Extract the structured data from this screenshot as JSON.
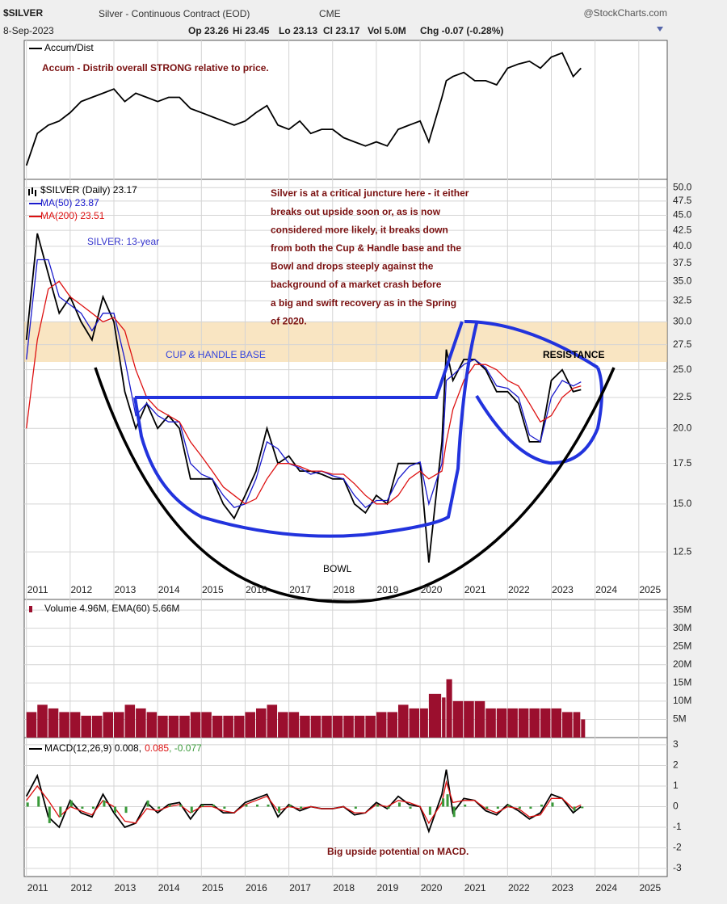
{
  "chart_data": [
    {
      "type": "line",
      "title": "$SILVER",
      "subtitle": "Silver - Continuous Contract (EOD)",
      "exchange": "CME",
      "source": "@StockCharts.com",
      "date": "8-Sep-2023",
      "quote": [
        "Op 23.26",
        "Hi 23.45",
        "Lo 23.13",
        "Cl 23.17",
        "Vol 5.0M",
        "Chg -0.07 (-0.28%)"
      ],
      "x": [
        2011.0,
        2011.25,
        2011.5,
        2011.75,
        2012.0,
        2012.25,
        2012.5,
        2012.75,
        2013.0,
        2013.25,
        2013.5,
        2013.75,
        2014.0,
        2014.25,
        2014.5,
        2014.75,
        2015.0,
        2015.25,
        2015.5,
        2015.75,
        2016.0,
        2016.25,
        2016.5,
        2016.75,
        2017.0,
        2017.25,
        2017.5,
        2017.75,
        2018.0,
        2018.25,
        2018.5,
        2018.75,
        2019.0,
        2019.25,
        2019.5,
        2019.75,
        2020.0,
        2020.2,
        2020.5,
        2020.6,
        2020.75,
        2021.0,
        2021.25,
        2021.5,
        2021.75,
        2022.0,
        2022.25,
        2022.5,
        2022.75,
        2023.0,
        2023.25,
        2023.5,
        2023.68
      ],
      "series": [
        {
          "name": "$SILVER (Daily) 23.17",
          "color": "#000000",
          "values": [
            28,
            42,
            36,
            31,
            33,
            30,
            28,
            33,
            30,
            23,
            20,
            22,
            20,
            21,
            20,
            16.5,
            16.5,
            16.5,
            15,
            14.2,
            15.5,
            17,
            20,
            17.5,
            18,
            17,
            17,
            16.8,
            16.5,
            16.5,
            15,
            14.5,
            15.5,
            15,
            17.5,
            17.5,
            17.5,
            12,
            19,
            27,
            24,
            26,
            26,
            25,
            23,
            23,
            22,
            19,
            19,
            24,
            25,
            23,
            23.17
          ]
        },
        {
          "name": "MA(50) 23.87",
          "color": "#1a1acc",
          "values": [
            26,
            38,
            38,
            33,
            32,
            31,
            29,
            31,
            31,
            26,
            21,
            22,
            21,
            20.5,
            20.5,
            17.5,
            16.8,
            16.5,
            15.5,
            14.8,
            15,
            16.5,
            19,
            18.5,
            17.5,
            17.2,
            16.8,
            17,
            16.7,
            16.5,
            15.5,
            14.8,
            15.2,
            15.2,
            16.5,
            17.3,
            17.6,
            15,
            17.5,
            24,
            24.5,
            25.5,
            26,
            25.2,
            23.5,
            23.3,
            22.5,
            19.5,
            19,
            22.5,
            24,
            23.5,
            23.87
          ]
        },
        {
          "name": "MA(200) 23.51",
          "color": "#dd1111",
          "values": [
            20,
            28,
            34,
            35,
            33,
            32,
            31,
            30,
            30.5,
            29,
            25,
            22.5,
            21.5,
            21,
            20.5,
            19,
            18,
            17,
            16,
            15.5,
            15,
            15.3,
            16.5,
            17.5,
            17.5,
            17.3,
            17,
            17,
            16.8,
            16.8,
            16.2,
            15.5,
            15,
            15,
            15.5,
            16.5,
            17,
            16.5,
            17,
            19,
            21.5,
            24,
            25.5,
            25.5,
            25,
            24,
            23.5,
            22,
            20.5,
            21,
            22.5,
            23.3,
            23.51
          ]
        }
      ],
      "log_scale": true,
      "grid": true,
      "xlim": [
        2010.95,
        2025.65
      ],
      "xticks": [
        2011,
        2012,
        2013,
        2014,
        2015,
        2016,
        2017,
        2018,
        2019,
        2020,
        2021,
        2022,
        2023,
        2024,
        2025
      ],
      "ylim": [
        10.43,
        51.6
      ],
      "yticks": [
        {
          "value": 50,
          "label": "50.0"
        },
        47.5,
        {
          "value": 45,
          "label": "45.0"
        },
        42.5,
        {
          "value": 40,
          "label": "40.0"
        },
        37.5,
        {
          "value": 35,
          "label": "35.0"
        },
        32.5,
        {
          "value": 30,
          "label": "30.0"
        },
        27.5,
        {
          "value": 25,
          "label": "25.0"
        },
        22.5,
        {
          "value": 20,
          "label": "20.0"
        },
        17.5,
        {
          "value": 15,
          "label": "15.0"
        },
        12.5
      ],
      "annotations": [
        {
          "text": "SILVER: 13-year",
          "color": "#3333cc"
        },
        {
          "lines": [
            "Silver is at a critical juncture here - it either",
            "breaks out upside soon or, as is now",
            "considered more likely, it breaks down",
            "from both the Cup & Handle base and the",
            "Bowl and drops steeply against the",
            "background of a market crash before",
            "a big and swift recovery as in the Spring",
            "of 2020."
          ],
          "color": "#7a1010"
        },
        {
          "text": "RESISTANCE",
          "color": "#000000"
        },
        {
          "text": "CUP & HANDLE BASE",
          "color": "#3344dd"
        },
        {
          "text": "BOWL",
          "color": "#000000"
        }
      ]
    },
    {
      "type": "line",
      "x": [
        2011.0,
        2011.25,
        2011.5,
        2011.75,
        2012.0,
        2012.25,
        2012.5,
        2012.75,
        2013.0,
        2013.25,
        2013.5,
        2013.75,
        2014.0,
        2014.25,
        2014.5,
        2014.75,
        2015.0,
        2015.25,
        2015.5,
        2015.75,
        2016.0,
        2016.25,
        2016.5,
        2016.75,
        2017.0,
        2017.25,
        2017.5,
        2017.75,
        2018.0,
        2018.25,
        2018.5,
        2018.75,
        2019.0,
        2019.25,
        2019.5,
        2019.75,
        2020.0,
        2020.2,
        2020.5,
        2020.6,
        2020.75,
        2021.0,
        2021.25,
        2021.5,
        2021.75,
        2022.0,
        2022.25,
        2022.5,
        2022.75,
        2023.0,
        2023.25,
        2023.5,
        2023.68
      ],
      "series": [
        {
          "name": "Accum/Dist",
          "color": "#000000",
          "values": [
            10,
            33,
            39,
            42,
            48,
            56,
            59,
            62,
            65,
            56,
            62,
            59,
            56,
            59,
            59,
            51,
            48,
            45,
            42,
            39,
            42,
            48,
            53,
            39,
            36,
            42,
            33,
            36,
            36,
            30,
            27,
            24,
            27,
            24,
            36,
            39,
            42,
            27,
            59,
            71,
            74,
            77,
            71,
            71,
            68,
            80,
            83,
            85,
            80,
            88,
            91,
            74,
            80
          ]
        }
      ],
      "xlim": [
        2010.95,
        2025.65
      ],
      "ylim": [
        0,
        100
      ],
      "annotations": [
        {
          "text": "Accum - Distrib overall STRONG relative to price.",
          "color": "#7a1010"
        }
      ]
    },
    {
      "type": "bar",
      "x": [
        2011.0,
        2011.25,
        2011.5,
        2011.75,
        2012.0,
        2012.25,
        2012.5,
        2012.75,
        2013.0,
        2013.25,
        2013.5,
        2013.75,
        2014.0,
        2014.25,
        2014.5,
        2014.75,
        2015.0,
        2015.25,
        2015.5,
        2015.75,
        2016.0,
        2016.25,
        2016.5,
        2016.75,
        2017.0,
        2017.25,
        2017.5,
        2017.75,
        2018.0,
        2018.25,
        2018.5,
        2018.75,
        2019.0,
        2019.25,
        2019.5,
        2019.75,
        2020.0,
        2020.2,
        2020.5,
        2020.6,
        2020.75,
        2021.0,
        2021.25,
        2021.5,
        2021.75,
        2022.0,
        2022.25,
        2022.5,
        2022.75,
        2023.0,
        2023.25,
        2023.5,
        2023.68
      ],
      "series": [
        {
          "name": "Volume 4.96M, EMA(60) 5.66M",
          "color": "#9b0f2e",
          "values": [
            7,
            9,
            8,
            7,
            7,
            6,
            6,
            7,
            7,
            9,
            8,
            7,
            6,
            6,
            6,
            7,
            7,
            6,
            6,
            6,
            7,
            8,
            9,
            7,
            7,
            6,
            6,
            6,
            6,
            6,
            6,
            6,
            7,
            7,
            9,
            8,
            8,
            12,
            11,
            16,
            10,
            10,
            10,
            8,
            8,
            8,
            8,
            8,
            8,
            8,
            7,
            7,
            5
          ]
        }
      ],
      "xlim": [
        2010.95,
        2025.65
      ],
      "ylim": [
        0,
        37.9
      ],
      "grid": true,
      "yticks": [
        {
          "value": 35,
          "label": "35M"
        },
        {
          "value": 30,
          "label": "30M"
        },
        {
          "value": 25,
          "label": "25M"
        },
        {
          "value": 20,
          "label": "20M"
        },
        {
          "value": 15,
          "label": "15M"
        },
        {
          "value": 10,
          "label": "10M"
        },
        {
          "value": 5,
          "label": "5M"
        }
      ]
    },
    {
      "type": "line",
      "x": [
        2011.0,
        2011.25,
        2011.5,
        2011.75,
        2012.0,
        2012.25,
        2012.5,
        2012.75,
        2013.0,
        2013.25,
        2013.5,
        2013.75,
        2014.0,
        2014.25,
        2014.5,
        2014.75,
        2015.0,
        2015.25,
        2015.5,
        2015.75,
        2016.0,
        2016.25,
        2016.5,
        2016.75,
        2017.0,
        2017.25,
        2017.5,
        2017.75,
        2018.0,
        2018.25,
        2018.5,
        2018.75,
        2019.0,
        2019.25,
        2019.5,
        2019.75,
        2020.0,
        2020.2,
        2020.5,
        2020.6,
        2020.75,
        2021.0,
        2021.25,
        2021.5,
        2021.75,
        2022.0,
        2022.25,
        2022.5,
        2022.75,
        2023.0,
        2023.25,
        2023.5,
        2023.68
      ],
      "series": [
        {
          "name": "MACD(12,26,9) 0.008,",
          "color": "#000000",
          "values": [
            0.5,
            1.5,
            -0.5,
            -1,
            0.3,
            -0.3,
            -0.5,
            0.6,
            -0.3,
            -1,
            -0.8,
            0.2,
            -0.3,
            0.1,
            0.2,
            -0.6,
            0.1,
            0.1,
            -0.3,
            -0.3,
            0.2,
            0.4,
            0.6,
            -0.5,
            0.1,
            -0.2,
            0,
            -0.1,
            -0.1,
            0,
            -0.4,
            -0.3,
            0.2,
            -0.1,
            0.5,
            0.1,
            0,
            -1.2,
            0.6,
            1.8,
            -0.3,
            0.4,
            0.3,
            -0.2,
            -0.4,
            0.1,
            -0.2,
            -0.6,
            -0.3,
            0.6,
            0.4,
            -0.3,
            0.008
          ]
        },
        {
          "name": "0.085",
          "color": "#dd1111",
          "values": [
            0.3,
            1,
            0.3,
            -0.5,
            0,
            -0.2,
            -0.4,
            0.3,
            0,
            -0.7,
            -0.8,
            -0.1,
            -0.2,
            0,
            0.1,
            -0.3,
            0,
            0,
            -0.2,
            -0.3,
            0.1,
            0.3,
            0.5,
            -0.2,
            0,
            -0.1,
            0,
            -0.1,
            -0.1,
            0,
            -0.3,
            -0.3,
            0.1,
            0,
            0.3,
            0.2,
            0,
            -0.8,
            0.2,
            1.2,
            0.2,
            0.3,
            0.3,
            -0.1,
            -0.3,
            0,
            -0.1,
            -0.5,
            -0.4,
            0.4,
            0.4,
            -0.1,
            0.085
          ]
        },
        {
          "name": ", -0.077",
          "color": "#3a9a3a",
          "type": "bar",
          "values": [
            0.2,
            0.5,
            -0.8,
            -0.5,
            0.3,
            -0.1,
            -0.1,
            0.3,
            -0.3,
            -0.3,
            0,
            0.3,
            -0.1,
            0.1,
            0.1,
            -0.3,
            0.1,
            0.1,
            -0.1,
            0,
            0.1,
            0.1,
            0.1,
            -0.3,
            0.1,
            -0.1,
            0,
            0,
            0,
            0,
            -0.1,
            0,
            0.1,
            -0.1,
            0.2,
            -0.1,
            0,
            -0.4,
            0.4,
            0.6,
            -0.5,
            0.1,
            0,
            -0.1,
            -0.1,
            0.1,
            -0.1,
            -0.1,
            0.1,
            0.2,
            0,
            -0.2,
            -0.077
          ]
        }
      ],
      "xlim": [
        2010.95,
        2025.65
      ],
      "xticks": [
        2011,
        2012,
        2013,
        2014,
        2015,
        2016,
        2017,
        2018,
        2019,
        2020,
        2021,
        2022,
        2023,
        2024,
        2025
      ],
      "ylim": [
        -3.39,
        3.35
      ],
      "grid": true,
      "yticks": [
        3,
        2,
        1,
        0,
        -1,
        -2,
        -3
      ],
      "annotations": [
        {
          "text": "Big upside potential on MACD.",
          "color": "#7a1010"
        }
      ]
    }
  ]
}
